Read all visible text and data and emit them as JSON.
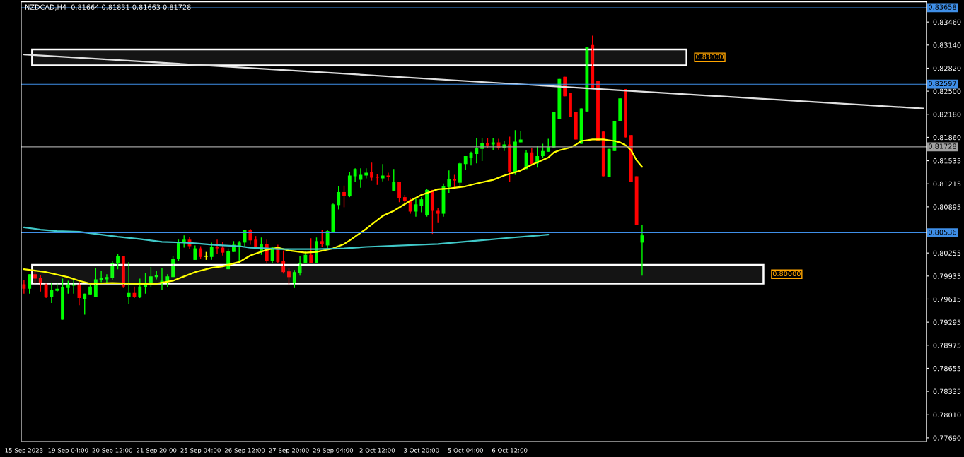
{
  "chart_data": {
    "type": "candlestick",
    "annotations": [
      "NZDCAD,H4  0.81664 0.81831 0.81663 0.81728"
    ],
    "categories": [
      "15 Sep 2023",
      null,
      null,
      null,
      null,
      null,
      null,
      null,
      "19 Sep 04:00",
      null,
      null,
      null,
      null,
      null,
      null,
      null,
      "20 Sep 12:00",
      null,
      null,
      null,
      null,
      null,
      null,
      null,
      "21 Sep 20:00",
      null,
      null,
      null,
      null,
      null,
      null,
      null,
      "25 Sep 04:00",
      null,
      null,
      null,
      null,
      null,
      null,
      null,
      "26 Sep 12:00",
      null,
      null,
      null,
      null,
      null,
      null,
      null,
      "27 Sep 20:00",
      null,
      null,
      null,
      null,
      null,
      null,
      null,
      "29 Sep 04:00",
      null,
      null,
      null,
      null,
      null,
      null,
      null,
      "2 Oct 12:00",
      null,
      null,
      null,
      null,
      null,
      null,
      null,
      "3 Oct 20:00",
      null,
      null,
      null,
      null,
      null,
      null,
      null,
      "5 Oct 04:00",
      null,
      null,
      null,
      null,
      null,
      null,
      null,
      "6 Oct 12:00",
      null,
      null,
      null,
      null,
      null,
      null,
      null,
      null,
      null,
      null,
      null,
      null,
      null,
      null,
      null,
      null,
      null,
      null,
      null,
      null,
      null,
      null,
      null,
      null,
      null,
      null,
      null,
      null,
      null,
      null,
      null,
      null,
      null,
      null,
      null,
      null,
      null,
      null,
      null,
      null,
      null,
      null,
      null,
      null,
      null,
      null,
      null,
      null,
      null,
      null,
      null,
      null,
      null,
      null,
      null,
      null,
      null,
      null,
      null,
      null,
      null,
      null,
      null,
      null,
      null,
      null,
      null,
      null,
      null,
      null,
      null,
      null,
      null,
      null,
      null
    ],
    "ohlc": [
      [
        0.7982,
        0.7988,
        0.7969,
        0.7976
      ],
      [
        0.7976,
        0.7996,
        0.7969,
        0.7996
      ],
      [
        0.7996,
        0.8002,
        0.7983,
        0.799
      ],
      [
        0.7991,
        0.7995,
        0.7972,
        0.7981
      ],
      [
        0.7982,
        0.7983,
        0.7963,
        0.7965
      ],
      [
        0.7965,
        0.7984,
        0.7956,
        0.7974
      ],
      [
        0.7973,
        0.7983,
        0.7971,
        0.7976
      ],
      [
        0.7933,
        0.799,
        0.7933,
        0.7978
      ],
      [
        0.7977,
        0.7987,
        0.7969,
        0.7981
      ],
      [
        0.798,
        0.799,
        0.7969,
        0.7983
      ],
      [
        0.7983,
        0.7987,
        0.7953,
        0.7963
      ],
      [
        0.7961,
        0.7969,
        0.794,
        0.7969
      ],
      [
        0.7968,
        0.7982,
        0.7968,
        0.7979
      ],
      [
        0.7965,
        0.8005,
        0.7965,
        0.7989
      ],
      [
        0.7988,
        0.8001,
        0.7985,
        0.7991
      ],
      [
        0.7989,
        0.7996,
        0.7984,
        0.7992
      ],
      [
        0.7991,
        0.8014,
        0.7988,
        0.8011
      ],
      [
        0.8011,
        0.8024,
        0.8003,
        0.8021
      ],
      [
        0.8021,
        0.8021,
        0.7977,
        0.7979
      ],
      [
        0.7965,
        0.8013,
        0.7955,
        0.797
      ],
      [
        0.797,
        0.7979,
        0.7963,
        0.7964
      ],
      [
        0.7965,
        0.799,
        0.7963,
        0.7979
      ],
      [
        0.7978,
        0.7998,
        0.7969,
        0.7981
      ],
      [
        0.7982,
        0.8006,
        0.7978,
        0.7993
      ],
      [
        0.7992,
        0.8001,
        0.7989,
        0.7995
      ],
      [
        0.7984,
        0.8004,
        0.7974,
        0.7987
      ],
      [
        0.7986,
        0.7996,
        0.7978,
        0.7993
      ],
      [
        0.7992,
        0.8021,
        0.7992,
        0.8017
      ],
      [
        0.8017,
        0.8044,
        0.8014,
        0.8041
      ],
      [
        0.8041,
        0.805,
        0.8033,
        0.8044
      ],
      [
        0.8044,
        0.8048,
        0.8031,
        0.8035
      ],
      [
        0.8016,
        0.8036,
        0.8016,
        0.8032
      ],
      [
        0.8032,
        0.8035,
        0.8017,
        0.802
      ],
      [
        0.8021,
        0.8027,
        0.8016,
        0.8021
      ],
      [
        0.802,
        0.804,
        0.8016,
        0.8034
      ],
      [
        0.8034,
        0.8044,
        0.8024,
        0.8032
      ],
      [
        0.8033,
        0.8041,
        0.8022,
        0.8026
      ],
      [
        0.8003,
        0.8032,
        0.8003,
        0.8028
      ],
      [
        0.8027,
        0.8042,
        0.8027,
        0.8037
      ],
      [
        0.8035,
        0.8042,
        0.8011,
        0.804
      ],
      [
        0.804,
        0.8057,
        0.8035,
        0.8057
      ],
      [
        0.8057,
        0.8059,
        0.8037,
        0.8043
      ],
      [
        0.8044,
        0.8049,
        0.8033,
        0.8033
      ],
      [
        0.8028,
        0.8047,
        0.8023,
        0.8038
      ],
      [
        0.8038,
        0.8044,
        0.8011,
        0.8014
      ],
      [
        0.8014,
        0.8034,
        0.8011,
        0.8033
      ],
      [
        0.8033,
        0.8037,
        0.8011,
        0.8013
      ],
      [
        0.8014,
        0.8029,
        0.7997,
        0.7999
      ],
      [
        0.8,
        0.8005,
        0.7982,
        0.7992
      ],
      [
        0.7984,
        0.8002,
        0.7977,
        0.7999
      ],
      [
        0.7998,
        0.8021,
        0.7994,
        0.8012
      ],
      [
        0.8011,
        0.8028,
        0.8011,
        0.8023
      ],
      [
        0.8023,
        0.8046,
        0.8011,
        0.8011
      ],
      [
        0.8012,
        0.8047,
        0.8011,
        0.8042
      ],
      [
        0.8042,
        0.8057,
        0.8034,
        0.8038
      ],
      [
        0.8036,
        0.8057,
        0.8032,
        0.8056
      ],
      [
        0.8055,
        0.8094,
        0.8055,
        0.8093
      ],
      [
        0.8092,
        0.8118,
        0.8086,
        0.811
      ],
      [
        0.811,
        0.8119,
        0.8089,
        0.8105
      ],
      [
        0.8104,
        0.8138,
        0.8103,
        0.8133
      ],
      [
        0.8132,
        0.8143,
        0.8124,
        0.8142
      ],
      [
        0.8127,
        0.8143,
        0.8116,
        0.8134
      ],
      [
        0.8133,
        0.8143,
        0.8129,
        0.8137
      ],
      [
        0.8138,
        0.8151,
        0.8126,
        0.813
      ],
      [
        0.8131,
        0.8135,
        0.812,
        0.813
      ],
      [
        0.8129,
        0.8149,
        0.8125,
        0.8133
      ],
      [
        0.8133,
        0.8137,
        0.8126,
        0.8131
      ],
      [
        0.8112,
        0.8142,
        0.8111,
        0.8124
      ],
      [
        0.8124,
        0.8124,
        0.8096,
        0.8102
      ],
      [
        0.8103,
        0.8106,
        0.8092,
        0.8098
      ],
      [
        0.8099,
        0.8101,
        0.808,
        0.8083
      ],
      [
        0.8083,
        0.8101,
        0.8076,
        0.8093
      ],
      [
        0.8091,
        0.8103,
        0.8082,
        0.81
      ],
      [
        0.8078,
        0.8114,
        0.8076,
        0.8113
      ],
      [
        0.8113,
        0.8113,
        0.8052,
        0.8084
      ],
      [
        0.8084,
        0.8088,
        0.8067,
        0.808
      ],
      [
        0.808,
        0.8122,
        0.8076,
        0.8118
      ],
      [
        0.8117,
        0.814,
        0.8109,
        0.8128
      ],
      [
        0.8128,
        0.8134,
        0.8116,
        0.8126
      ],
      [
        0.8123,
        0.8151,
        0.8118,
        0.815
      ],
      [
        0.8149,
        0.816,
        0.8141,
        0.816
      ],
      [
        0.8158,
        0.8166,
        0.8147,
        0.8164
      ],
      [
        0.8163,
        0.8185,
        0.815,
        0.8171
      ],
      [
        0.817,
        0.8185,
        0.8153,
        0.8178
      ],
      [
        0.8178,
        0.8185,
        0.8171,
        0.8175
      ],
      [
        0.8176,
        0.8185,
        0.8168,
        0.8179
      ],
      [
        0.8179,
        0.8184,
        0.8169,
        0.8171
      ],
      [
        0.8171,
        0.8181,
        0.8167,
        0.8176
      ],
      [
        0.8176,
        0.8187,
        0.8124,
        0.8138
      ],
      [
        0.8138,
        0.8196,
        0.8134,
        0.818
      ],
      [
        0.8179,
        0.8195,
        0.8179,
        0.8183
      ],
      [
        0.8142,
        0.8168,
        0.8142,
        0.8165
      ],
      [
        0.8165,
        0.8171,
        0.8149,
        0.8149
      ],
      [
        0.815,
        0.8174,
        0.8144,
        0.816
      ],
      [
        0.816,
        0.8177,
        0.8158,
        0.8167
      ],
      [
        0.8166,
        0.8184,
        0.8166,
        0.8173
      ],
      [
        0.8172,
        0.8221,
        0.8172,
        0.8221
      ],
      [
        0.8212,
        0.8267,
        0.8212,
        0.8267
      ],
      [
        0.827,
        0.827,
        0.8243,
        0.8243
      ],
      [
        0.8248,
        0.8248,
        0.8214,
        0.8214
      ],
      [
        0.8221,
        0.8221,
        0.8183,
        0.8183
      ],
      [
        0.8177,
        0.8226,
        0.8177,
        0.8226
      ],
      [
        0.8222,
        0.8311,
        0.8222,
        0.8311
      ],
      [
        0.8314,
        0.8327,
        0.8255,
        0.8255
      ],
      [
        0.8264,
        0.8264,
        0.8181,
        0.8181
      ],
      [
        0.8194,
        0.8194,
        0.8132,
        0.8132
      ],
      [
        0.8131,
        0.817,
        0.8131,
        0.817
      ],
      [
        0.8167,
        0.8208,
        0.8167,
        0.8208
      ],
      [
        0.8208,
        0.824,
        0.8208,
        0.824
      ],
      [
        0.8253,
        0.8253,
        0.8186,
        0.8186
      ],
      [
        0.8189,
        0.8189,
        0.8124,
        0.8124
      ],
      [
        0.8132,
        0.8132,
        0.8064,
        0.8064
      ],
      [
        0.804,
        0.8064,
        0.7994,
        0.805
      ],
      null,
      null,
      null,
      null,
      null,
      null,
      null,
      null,
      null,
      null,
      null,
      null,
      null,
      null,
      null,
      null,
      null,
      null,
      null,
      null,
      null,
      null,
      null,
      null,
      null,
      null,
      null,
      null,
      null,
      null,
      null,
      null,
      null,
      null,
      null,
      null,
      null,
      null,
      null,
      null,
      null,
      null,
      null,
      null,
      null,
      null,
      null,
      null,
      null,
      null,
      null
    ],
    "colors": [
      "#ff0000",
      "#00ff00",
      "#ff0000",
      "#ff0000",
      "#ff0000",
      "#00ff00",
      "#00ff00",
      "#00ff00",
      "#00ff00",
      "#00ff00",
      "#ff0000",
      "#00ff00",
      "#00ff00",
      "#00ff00",
      "#00ff00",
      "#00ff00",
      "#00ff00",
      "#00ff00",
      "#ff0000",
      "#00ff00",
      "#ff0000",
      "#00ff00",
      "#00ff00",
      "#00ff00",
      "#00ff00",
      "#00ff00",
      "#00ff00",
      "#00ff00",
      "#00ff00",
      "#00ff00",
      "#ff0000",
      "#00ff00",
      "#ff0000",
      "#ffff00",
      "#00ff00",
      "#ff0000",
      "#ff0000",
      "#00ff00",
      "#00ff00",
      "#00ff00",
      "#00ff00",
      "#ff0000",
      "#ff0000",
      "#00ff00",
      "#ff0000",
      "#00ff00",
      "#ff0000",
      "#ff0000",
      "#ff0000",
      "#00ff00",
      "#00ff00",
      "#00ff00",
      "#ff0000",
      "#00ff00",
      "#ff0000",
      "#00ff00",
      "#00ff00",
      "#00ff00",
      "#ff0000",
      "#00ff00",
      "#00ff00",
      "#00ff00",
      "#00ff00",
      "#ff0000",
      "#ff0000",
      "#00ff00",
      "#ff0000",
      "#00ff00",
      "#ff0000",
      "#ff0000",
      "#ff0000",
      "#00ff00",
      "#00ff00",
      "#00ff00",
      "#ff0000",
      "#ff0000",
      "#00ff00",
      "#00ff00",
      "#ff0000",
      "#00ff00",
      "#00ff00",
      "#00ff00",
      "#00ff00",
      "#00ff00",
      "#ff0000",
      "#00ff00",
      "#ff0000",
      "#00ff00",
      "#ff0000",
      "#00ff00",
      "#00ff00",
      "#00ff00",
      "#ff0000",
      "#00ff00",
      "#00ff00",
      "#00ff00",
      "#00ff00",
      "#00ff00",
      "#ff0000",
      "#ff0000",
      "#ff0000",
      "#00ff00",
      "#00ff00",
      "#ff0000",
      "#ff0000",
      "#ff0000",
      "#00ff00",
      "#00ff00",
      "#00ff00",
      "#ff0000",
      "#ff0000",
      "#ff0000",
      "#00ff00",
      null,
      null,
      null,
      null,
      null,
      null,
      null,
      null,
      null,
      null,
      null,
      null,
      null,
      null,
      null,
      null,
      null,
      null,
      null,
      null,
      null,
      null,
      null,
      null,
      null,
      null,
      null,
      null,
      null,
      null,
      null,
      null,
      null,
      null,
      null,
      null,
      null,
      null,
      null,
      null,
      null,
      null,
      null,
      null,
      null,
      null,
      null,
      null,
      null,
      null,
      null
    ],
    "series": [
      {
        "type": "line",
        "color": "#ffff00",
        "values": [
          0.8003,
          null,
          null,
          null,
          0.7999,
          null,
          null,
          null,
          0.7992,
          null,
          0.7987,
          null,
          0.7983,
          null,
          null,
          null,
          0.7984,
          null,
          null,
          null,
          0.7983,
          null,
          null,
          null,
          0.7983,
          null,
          null,
          0.7987,
          null,
          0.7993,
          null,
          0.7999,
          null,
          null,
          0.8005,
          null,
          0.8007,
          null,
          null,
          0.8013,
          null,
          0.8022,
          null,
          null,
          0.803,
          null,
          0.8033,
          null,
          0.8029,
          null,
          null,
          0.8026,
          null,
          0.8027,
          null,
          null,
          0.8032,
          null,
          0.8038,
          0.8043,
          null,
          null,
          0.8059,
          null,
          null,
          0.8077,
          null,
          0.8084,
          null,
          null,
          0.8098,
          null,
          0.8106,
          null,
          null,
          0.8114,
          null,
          0.8115,
          null,
          null,
          0.8118,
          null,
          0.8122,
          null,
          null,
          0.8127,
          null,
          0.8133,
          null,
          null,
          0.814,
          null,
          0.8148,
          null,
          null,
          0.8158,
          0.8165,
          0.8168,
          0.817,
          0.8172,
          0.8176,
          0.8181,
          0.8182,
          0.8183,
          0.8183,
          0.8183,
          0.8182,
          0.8181,
          0.8179,
          0.8175,
          0.8168,
          0.8154,
          0.8145,
          null,
          null,
          null,
          null,
          null,
          null,
          null,
          null,
          null,
          null,
          null,
          null,
          null,
          null,
          null,
          null,
          null,
          null,
          null,
          null,
          null,
          null,
          null,
          null,
          null,
          null,
          null,
          null,
          null,
          null,
          null,
          null,
          null,
          null,
          null,
          null,
          null,
          null,
          null,
          null,
          null,
          null,
          null,
          null,
          null,
          null,
          null,
          null,
          null,
          null,
          null
        ]
      },
      {
        "type": "line",
        "color": "#40c8c8",
        "values": [
          0.8061,
          null,
          null,
          0.8058,
          null,
          null,
          0.8056,
          null,
          null,
          null,
          0.8055,
          null,
          null,
          null,
          0.8051,
          null,
          null,
          0.8048,
          null,
          null,
          null,
          0.8045,
          null,
          null,
          null,
          0.8041,
          null,
          null,
          null,
          0.804,
          null,
          0.8039,
          null,
          null,
          0.8037,
          null,
          0.8036,
          null,
          null,
          0.8035,
          null,
          0.8033,
          null,
          null,
          0.8032,
          null,
          0.8031,
          null,
          null,
          null,
          null,
          null,
          null,
          0.8031,
          null,
          null,
          null,
          null,
          0.8032,
          null,
          null,
          null,
          0.8034,
          null,
          null,
          null,
          null,
          null,
          null,
          null,
          null,
          null,
          null,
          null,
          null,
          0.8038,
          null,
          null,
          null,
          null,
          null,
          null,
          null,
          null,
          0.8044,
          null,
          null,
          0.8046,
          null,
          null,
          null,
          null,
          null,
          null,
          null,
          0.8051,
          null,
          null,
          null,
          null,
          null,
          null,
          null,
          null,
          null,
          null,
          null,
          null,
          null,
          null,
          null,
          null,
          null,
          null,
          null,
          null,
          null,
          null,
          null,
          null,
          null,
          null,
          null,
          null,
          null,
          null,
          null,
          null,
          null,
          null,
          null,
          null,
          null,
          null,
          null,
          null,
          null,
          null,
          null,
          null,
          null,
          null,
          null,
          null,
          null,
          null,
          null,
          null,
          null,
          null,
          null,
          null,
          null,
          null,
          null,
          null,
          null,
          null,
          null,
          null,
          null,
          null,
          null,
          null
        ]
      },
      {
        "type": "line",
        "color": "#e0e0e0",
        "values": [
          0.8301,
          null,
          null,
          null,
          null,
          null,
          null,
          null,
          null,
          null,
          null,
          null,
          null,
          null,
          null,
          null,
          null,
          null,
          null,
          null,
          null,
          null,
          null,
          null,
          null,
          null,
          null,
          null,
          null,
          null,
          null,
          null,
          null,
          null,
          null,
          null,
          null,
          null,
          null,
          null,
          null,
          null,
          null,
          null,
          null,
          null,
          null,
          null,
          null,
          null,
          null,
          null,
          null,
          null,
          null,
          null,
          null,
          null,
          null,
          null,
          null,
          null,
          null,
          null,
          null,
          null,
          null,
          null,
          null,
          null,
          null,
          null,
          null,
          null,
          null,
          null,
          null,
          null,
          null,
          null,
          null,
          null,
          null,
          null,
          null,
          null,
          null,
          null,
          null,
          null,
          null,
          null,
          null,
          null,
          null,
          null,
          null,
          null,
          null,
          null,
          null,
          null,
          null,
          null,
          null,
          null,
          null,
          null,
          null,
          null,
          null,
          null,
          null,
          null,
          null,
          null,
          null,
          null,
          null,
          null,
          null,
          null,
          null,
          null,
          null,
          null,
          null,
          null,
          null,
          null,
          null,
          null,
          null,
          null,
          null,
          null,
          null,
          null,
          null,
          null,
          null,
          null,
          null,
          null,
          null,
          null,
          null,
          null,
          null,
          null,
          null,
          null,
          null,
          null,
          null,
          null,
          null,
          null,
          null,
          null,
          null,
          null,
          null,
          0.8226
        ]
      }
    ],
    "ylim": [
      0.7764,
      0.8374
    ],
    "yticks": [
      {
        "value": 0.8346,
        "label": "0.83460"
      },
      {
        "value": 0.8314,
        "label": "0.83140"
      },
      {
        "value": 0.8282,
        "label": "0.82820"
      },
      {
        "value": 0.825,
        "label": "0.82500"
      },
      {
        "value": 0.8218,
        "label": "0.82180"
      },
      {
        "value": 0.8186,
        "label": "0.81860"
      },
      {
        "value": 0.81535,
        "label": "0.81535"
      },
      {
        "value": 0.81215,
        "label": "0.81215"
      },
      {
        "value": 0.80895,
        "label": "0.80895"
      },
      {
        "value": 0.80255,
        "label": "0.80255"
      },
      {
        "value": 0.79935,
        "label": "0.79935"
      },
      {
        "value": 0.79615,
        "label": "0.79615"
      },
      {
        "value": 0.79295,
        "label": "0.79295"
      },
      {
        "value": 0.78975,
        "label": "0.78975"
      },
      {
        "value": 0.78655,
        "label": "0.78655"
      },
      {
        "value": 0.78335,
        "label": "0.78335"
      },
      {
        "value": 0.7801,
        "label": "0.78010"
      },
      {
        "value": 0.7769,
        "label": "0.77690"
      }
    ],
    "ref_lines": [
      {
        "axis": "y",
        "value": 0.83658,
        "label": "0.83658",
        "color": "#3f8fe8"
      },
      {
        "axis": "y",
        "value": 0.82597,
        "label": "0.82597",
        "color": "#3f8fe8"
      },
      {
        "axis": "y",
        "value": 0.81728,
        "label": "0.81728",
        "color": "#a0a0a0"
      },
      {
        "axis": "y",
        "value": 0.80536,
        "label": "0.80536",
        "color": "#3f8fe8"
      }
    ],
    "bands": [
      {
        "axis": "y",
        "from": 0.8286,
        "to": 0.8308,
        "label": "0.83000",
        "color": "#ffffff"
      },
      {
        "axis": "y",
        "from": 0.7983,
        "to": 0.8009,
        "label": "0.80000",
        "color": "#ffffff"
      }
    ]
  }
}
